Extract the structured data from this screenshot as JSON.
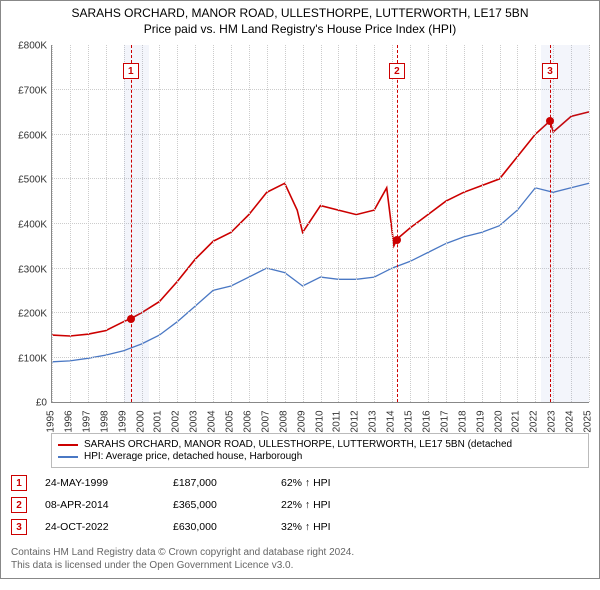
{
  "title": {
    "line1": "SARAHS ORCHARD, MANOR ROAD, ULLESTHORPE, LUTTERWORTH, LE17 5BN",
    "line2": "Price paid vs. HM Land Registry's House Price Index (HPI)"
  },
  "chart": {
    "type": "line",
    "x_min_year": 1995,
    "x_max_year": 2025,
    "y_min": 0,
    "y_max": 800000,
    "y_tick_step": 100000,
    "y_prefix": "£",
    "y_suffix": "K",
    "background_color": "#ffffff",
    "grid_color": "#cccccc",
    "axis_color": "#888888",
    "shade_color": "rgba(100,130,200,0.08)",
    "recession_bands": [
      {
        "start": 1999.0,
        "end": 2000.4
      },
      {
        "start": 2022.3,
        "end": 2025.0
      }
    ],
    "markers": [
      {
        "n": "1",
        "year": 1999.4,
        "price": 187000
      },
      {
        "n": "2",
        "year": 2014.27,
        "price": 365000
      },
      {
        "n": "3",
        "year": 2022.82,
        "price": 630000
      }
    ],
    "series": [
      {
        "name": "property",
        "color": "#cc0000",
        "width": 1.6,
        "points": [
          [
            1995,
            150000
          ],
          [
            1996,
            148000
          ],
          [
            1997,
            152000
          ],
          [
            1998,
            160000
          ],
          [
            1999,
            180000
          ],
          [
            1999.4,
            187000
          ],
          [
            2000,
            200000
          ],
          [
            2001,
            225000
          ],
          [
            2002,
            270000
          ],
          [
            2003,
            320000
          ],
          [
            2004,
            360000
          ],
          [
            2005,
            380000
          ],
          [
            2006,
            420000
          ],
          [
            2007,
            470000
          ],
          [
            2008,
            490000
          ],
          [
            2008.7,
            430000
          ],
          [
            2009,
            380000
          ],
          [
            2010,
            440000
          ],
          [
            2011,
            430000
          ],
          [
            2012,
            420000
          ],
          [
            2013,
            430000
          ],
          [
            2013.7,
            480000
          ],
          [
            2014.1,
            350000
          ],
          [
            2014.27,
            365000
          ],
          [
            2015,
            390000
          ],
          [
            2016,
            420000
          ],
          [
            2017,
            450000
          ],
          [
            2018,
            470000
          ],
          [
            2019,
            485000
          ],
          [
            2020,
            500000
          ],
          [
            2021,
            550000
          ],
          [
            2022,
            600000
          ],
          [
            2022.82,
            630000
          ],
          [
            2023,
            605000
          ],
          [
            2024,
            640000
          ],
          [
            2025,
            650000
          ]
        ]
      },
      {
        "name": "hpi",
        "color": "#4a78c4",
        "width": 1.3,
        "points": [
          [
            1995,
            90000
          ],
          [
            1996,
            92000
          ],
          [
            1997,
            98000
          ],
          [
            1998,
            105000
          ],
          [
            1999,
            115000
          ],
          [
            2000,
            130000
          ],
          [
            2001,
            150000
          ],
          [
            2002,
            180000
          ],
          [
            2003,
            215000
          ],
          [
            2004,
            250000
          ],
          [
            2005,
            260000
          ],
          [
            2006,
            280000
          ],
          [
            2007,
            300000
          ],
          [
            2008,
            290000
          ],
          [
            2009,
            260000
          ],
          [
            2010,
            280000
          ],
          [
            2011,
            275000
          ],
          [
            2012,
            275000
          ],
          [
            2013,
            280000
          ],
          [
            2014,
            300000
          ],
          [
            2015,
            315000
          ],
          [
            2016,
            335000
          ],
          [
            2017,
            355000
          ],
          [
            2018,
            370000
          ],
          [
            2019,
            380000
          ],
          [
            2020,
            395000
          ],
          [
            2021,
            430000
          ],
          [
            2022,
            480000
          ],
          [
            2023,
            470000
          ],
          [
            2024,
            480000
          ],
          [
            2025,
            490000
          ]
        ]
      }
    ]
  },
  "legend": {
    "items": [
      {
        "color": "#cc0000",
        "label": "SARAHS ORCHARD, MANOR ROAD, ULLESTHORPE, LUTTERWORTH, LE17 5BN (detached"
      },
      {
        "color": "#4a78c4",
        "label": "HPI: Average price, detached house, Harborough"
      }
    ]
  },
  "sales": [
    {
      "n": "1",
      "date": "24-MAY-1999",
      "price": "£187,000",
      "rel": "62% ↑ HPI"
    },
    {
      "n": "2",
      "date": "08-APR-2014",
      "price": "£365,000",
      "rel": "22% ↑ HPI"
    },
    {
      "n": "3",
      "date": "24-OCT-2022",
      "price": "£630,000",
      "rel": "32% ↑ HPI"
    }
  ],
  "footer": {
    "line1": "Contains HM Land Registry data © Crown copyright and database right 2024.",
    "line2": "This data is licensed under the Open Government Licence v3.0."
  }
}
